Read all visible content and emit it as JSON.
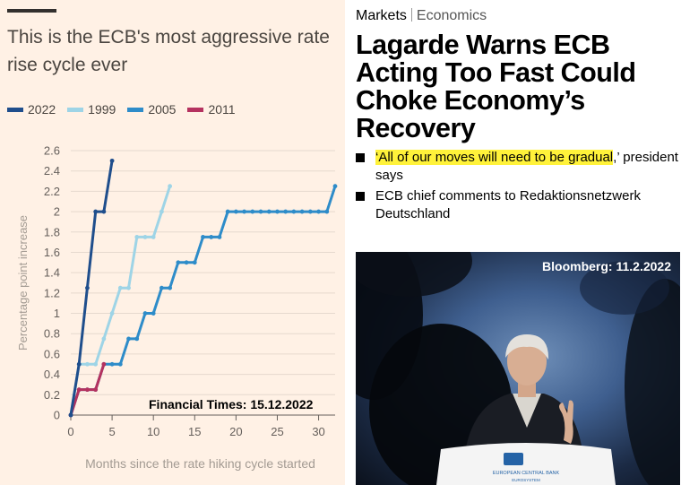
{
  "ft": {
    "title": "This is the ECB's most aggressive rate rise cycle ever",
    "source": "Financial Times: 15.12.2022"
  },
  "chart_data": {
    "type": "line",
    "title": "This is the ECB's most aggressive rate rise cycle ever",
    "xlabel": "Months since the rate hiking cycle started",
    "ylabel": "Percentage point increase",
    "xlim": [
      0,
      32
    ],
    "ylim": [
      0,
      2.6
    ],
    "xticks": [
      0,
      5,
      10,
      15,
      20,
      25,
      30
    ],
    "yticks": [
      0,
      0.2,
      0.4,
      0.6,
      0.8,
      1,
      1.2,
      1.4,
      1.6,
      1.8,
      2,
      2.2,
      2.4,
      2.6
    ],
    "grid": "horizontal",
    "legend_position": "top-left",
    "series": [
      {
        "name": "2022",
        "color": "#1f4e8c",
        "x": [
          0,
          1,
          2,
          3,
          4,
          5
        ],
        "y": [
          0,
          0.5,
          1.25,
          2,
          2,
          2.5
        ]
      },
      {
        "name": "1999",
        "color": "#9ed4e6",
        "x": [
          0,
          1,
          2,
          3,
          4,
          5,
          6,
          7,
          8,
          9,
          10,
          11,
          12
        ],
        "y": [
          0,
          0.5,
          0.5,
          0.5,
          0.75,
          1,
          1.25,
          1.25,
          1.75,
          1.75,
          1.75,
          2,
          2.25
        ]
      },
      {
        "name": "2005",
        "color": "#2e8cc9",
        "x": [
          0,
          1,
          2,
          3,
          4,
          5,
          6,
          7,
          8,
          9,
          10,
          11,
          12,
          13,
          14,
          15,
          16,
          17,
          18,
          19,
          20,
          21,
          22,
          23,
          24,
          25,
          26,
          27,
          28,
          29,
          30,
          31,
          32
        ],
        "y": [
          0,
          0.25,
          0.25,
          0.25,
          0.5,
          0.5,
          0.5,
          0.75,
          0.75,
          1,
          1,
          1.25,
          1.25,
          1.5,
          1.5,
          1.5,
          1.75,
          1.75,
          1.75,
          2,
          2,
          2,
          2,
          2,
          2,
          2,
          2,
          2,
          2,
          2,
          2,
          2,
          2.25
        ]
      },
      {
        "name": "2011",
        "color": "#b5325f",
        "x": [
          0,
          1,
          2,
          3,
          4
        ],
        "y": [
          0,
          0.25,
          0.25,
          0.25,
          0.5
        ]
      }
    ]
  },
  "bloomberg": {
    "crumb_markets": "Markets",
    "crumb_economics": "Economics",
    "headline": "Lagarde Warns ECB Acting Too Fast Could Choke Economy’s Recovery",
    "bullet1_highlight": "‘All of our moves will need to be gradual",
    "bullet1_rest": ",’ president says",
    "bullet2": "ECB chief comments to Redaktionsnetzwerk Deutschland",
    "photo_source": "Bloomberg: 11.2.2022",
    "podium_text1": "EUROPEAN CENTRAL BANK",
    "podium_text2": "EUROSYSTEM"
  }
}
